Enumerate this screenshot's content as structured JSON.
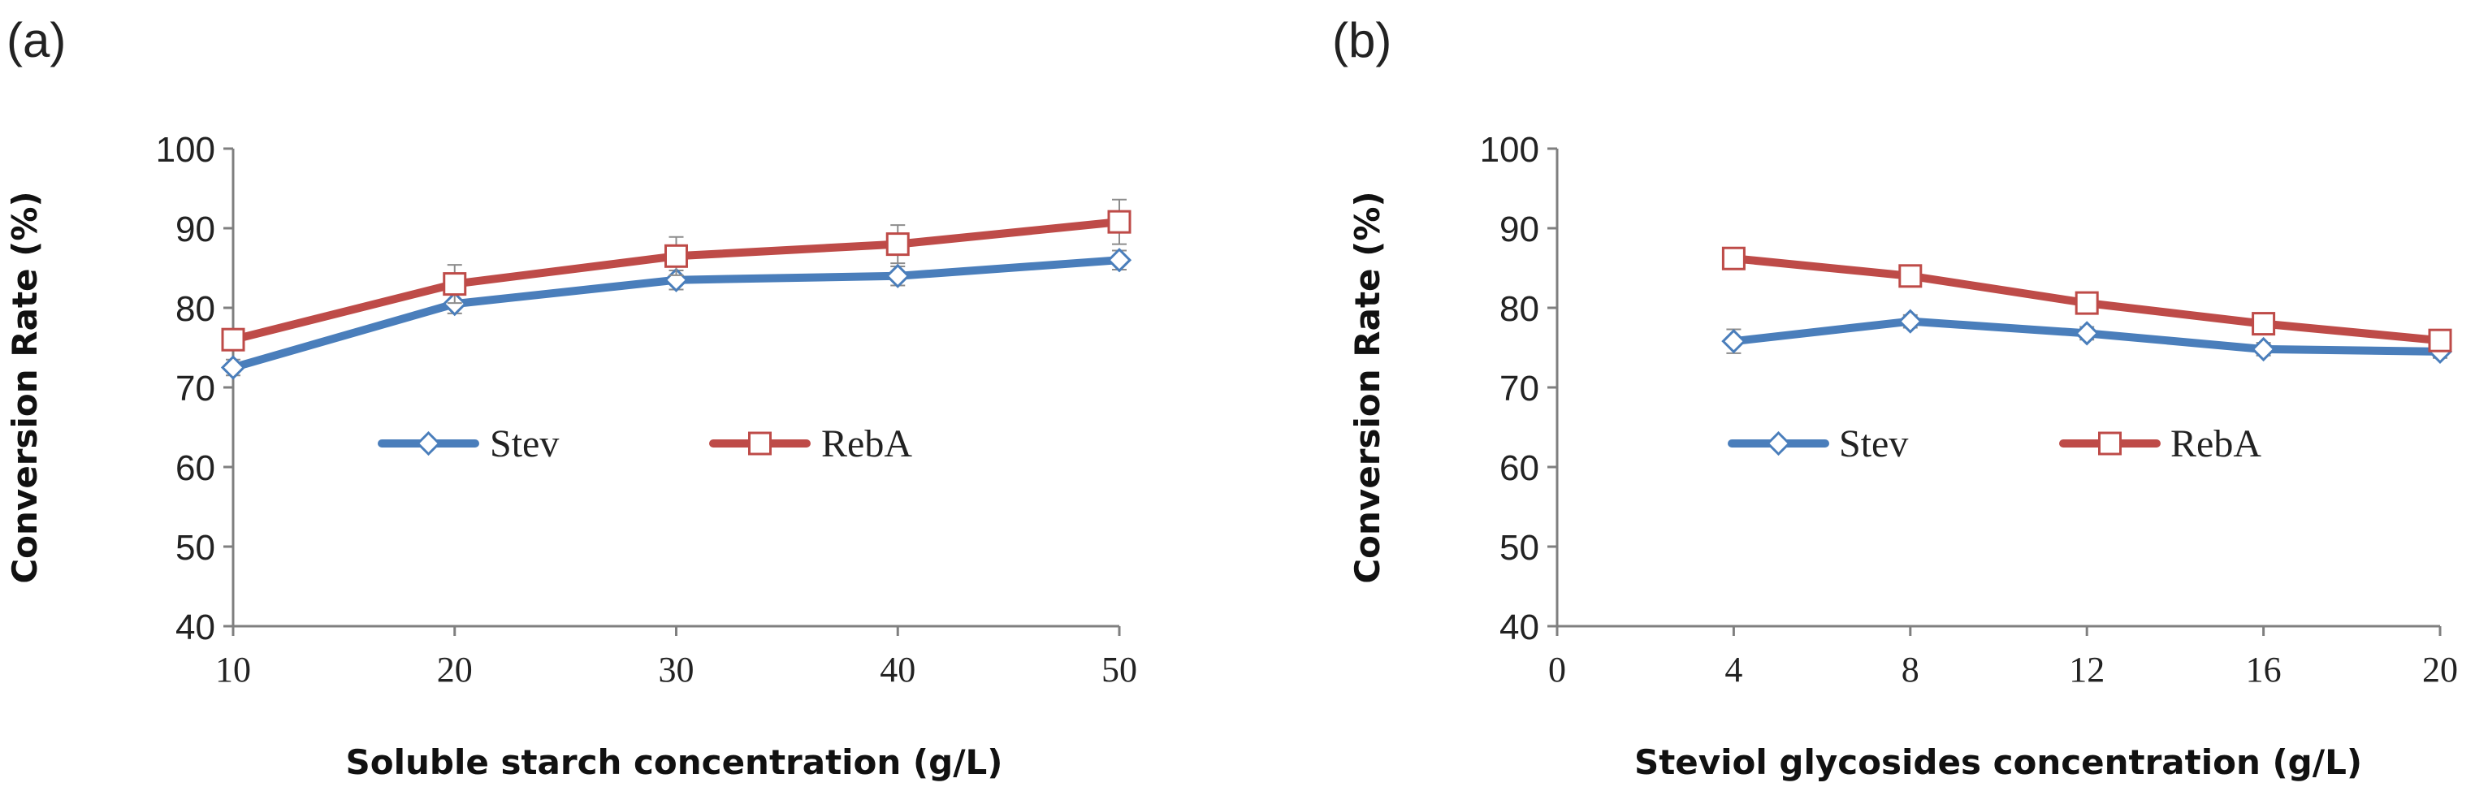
{
  "colors": {
    "stev": "#4a7ebb",
    "reba": "#be4b48",
    "axis": "#7f7f7f",
    "errorbar": "#8c8c8c"
  },
  "chart_data": [
    {
      "id": "a",
      "panel_label": "(a)",
      "type": "line",
      "xlabel": "Soluble starch concentration (g/L)",
      "ylabel": "Conversion Rate (%)",
      "xlim": [
        10,
        50
      ],
      "ylim": [
        40,
        100
      ],
      "xticks": [
        10,
        20,
        30,
        40,
        50
      ],
      "yticks": [
        40,
        50,
        60,
        70,
        80,
        90,
        100
      ],
      "x": [
        10,
        20,
        30,
        40,
        50
      ],
      "series": [
        {
          "name": "Stev",
          "marker": "diamond",
          "values": [
            72.5,
            80.5,
            83.5,
            84.0,
            86.0
          ],
          "errors": [
            1.0,
            1.2,
            1.2,
            1.2,
            1.2
          ]
        },
        {
          "name": "RebA",
          "marker": "square",
          "values": [
            76.0,
            83.0,
            86.5,
            88.0,
            90.8
          ],
          "errors": [
            1.0,
            2.4,
            2.4,
            2.4,
            2.8
          ]
        }
      ],
      "legend_position": "center-left"
    },
    {
      "id": "b",
      "panel_label": "(b)",
      "type": "line",
      "xlabel": "Steviol glycosides concentration  (g/L)",
      "ylabel": "Conversion Rate (%)",
      "xlim": [
        0,
        20
      ],
      "ylim": [
        40,
        100
      ],
      "xticks": [
        0,
        4,
        8,
        12,
        16,
        20
      ],
      "yticks": [
        40,
        50,
        60,
        70,
        80,
        90,
        100
      ],
      "x": [
        4,
        8,
        12,
        16,
        20
      ],
      "series": [
        {
          "name": "Stev",
          "marker": "diamond",
          "values": [
            75.8,
            78.3,
            76.8,
            74.8,
            74.5
          ],
          "errors": [
            1.5,
            0.8,
            0.8,
            0.8,
            0.8
          ]
        },
        {
          "name": "RebA",
          "marker": "square",
          "values": [
            86.2,
            84.0,
            80.6,
            78.0,
            75.9
          ],
          "errors": [
            0.6,
            0.6,
            0.6,
            0.6,
            0.6
          ]
        }
      ],
      "legend_position": "center"
    }
  ]
}
